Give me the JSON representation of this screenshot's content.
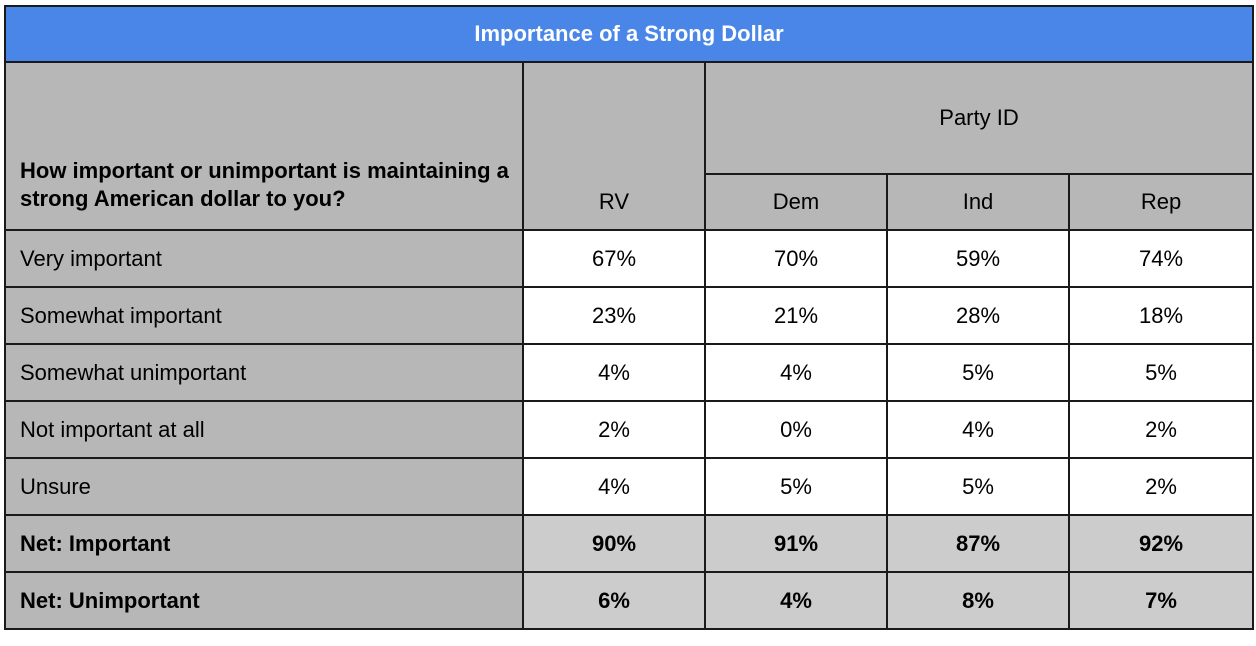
{
  "title": "Importance of a Strong Dollar",
  "question": "How important or unimportant is maintaining a strong American dollar to you?",
  "columns": {
    "rv": "RV",
    "group": "Party ID",
    "dem": "Dem",
    "ind": "Ind",
    "rep": "Rep"
  },
  "rows": [
    {
      "label": "Very important",
      "rv": "67%",
      "dem": "70%",
      "ind": "59%",
      "rep": "74%"
    },
    {
      "label": "Somewhat important",
      "rv": "23%",
      "dem": "21%",
      "ind": "28%",
      "rep": "18%"
    },
    {
      "label": "Somewhat unimportant",
      "rv": "4%",
      "dem": "4%",
      "ind": "5%",
      "rep": "5%"
    },
    {
      "label": "Not important at all",
      "rv": "2%",
      "dem": "0%",
      "ind": "4%",
      "rep": "2%"
    },
    {
      "label": "Unsure",
      "rv": "4%",
      "dem": "5%",
      "ind": "5%",
      "rep": "2%"
    },
    {
      "label": "Net: Important",
      "rv": "90%",
      "dem": "91%",
      "ind": "87%",
      "rep": "92%"
    },
    {
      "label": "Net: Unimportant",
      "rv": "6%",
      "dem": "4%",
      "ind": "8%",
      "rep": "7%"
    }
  ],
  "colors": {
    "title_bg": "#4a86e8",
    "header_bg": "#b7b7b7",
    "net_bg": "#cccccc"
  }
}
